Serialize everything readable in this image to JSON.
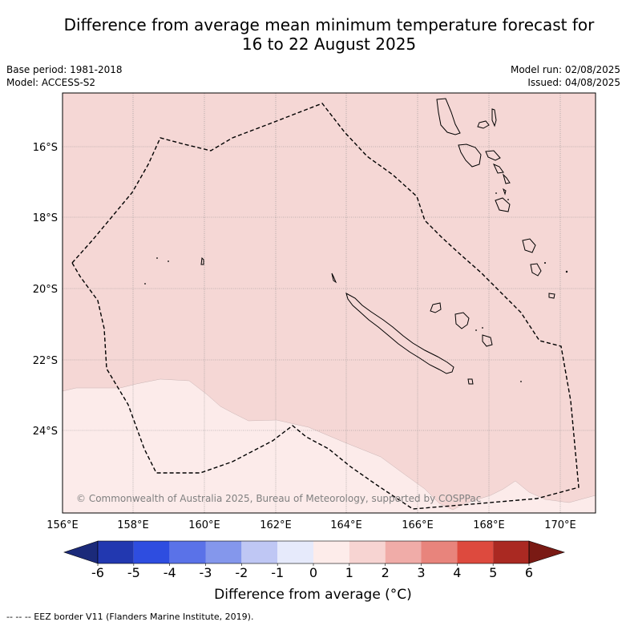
{
  "title_line1": "Difference from average mean minimum temperature forecast for",
  "title_line2": "16 to 22 August 2025",
  "base_period": "Base period: 1981-2018",
  "model": "Model: ACCESS-S2",
  "model_run": "Model run: 02/08/2025",
  "issued": "Issued: 04/08/2025",
  "copyright": "© Commonwealth of Australia 2025, Bureau of Meteorology, supported by COSPPac",
  "lat_labels": [
    "16°S",
    "18°S",
    "20°S",
    "22°S",
    "24°S"
  ],
  "lon_labels": [
    "156°E",
    "158°E",
    "160°E",
    "162°E",
    "164°E",
    "166°E",
    "168°E",
    "170°E"
  ],
  "colorbar": {
    "label": "Difference from average (°C)",
    "ticks": [
      "-6",
      "-5",
      "-4",
      "-3",
      "-2",
      "-1",
      "0",
      "1",
      "2",
      "3",
      "4",
      "5",
      "6"
    ],
    "colors": [
      "#1b2a7a",
      "#2238b0",
      "#2e4de0",
      "#5a72e8",
      "#8497ec",
      "#bfc7f4",
      "#e6eafb",
      "#fdecea",
      "#f7d4d2",
      "#f0aca8",
      "#e8847c",
      "#dd4a3e",
      "#aa2922",
      "#7a1a14"
    ]
  },
  "legend_note": "--  --  -- EEZ border V11 (Flanders Marine Institute, 2019).",
  "field_colors": {
    "range_1_2": "#f5d7d5",
    "range_0_1": "#fcebea"
  }
}
